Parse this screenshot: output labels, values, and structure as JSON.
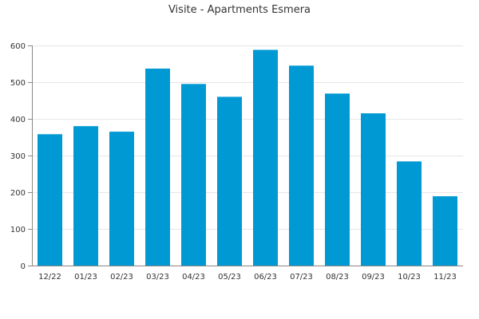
{
  "chart_data": {
    "type": "bar",
    "title": "Visite - Apartments Esmera",
    "xlabel": "",
    "ylabel": "",
    "categories": [
      "12/22",
      "01/23",
      "02/23",
      "03/23",
      "04/23",
      "05/23",
      "06/23",
      "07/23",
      "08/23",
      "09/23",
      "10/23",
      "11/23"
    ],
    "values": [
      358,
      380,
      365,
      537,
      495,
      460,
      588,
      545,
      469,
      415,
      284,
      189
    ],
    "ylim": [
      0,
      600
    ],
    "yticks": [
      0,
      100,
      200,
      300,
      400,
      500,
      600
    ],
    "grid": true,
    "legend": "none",
    "bar_color": "#0099d4"
  }
}
